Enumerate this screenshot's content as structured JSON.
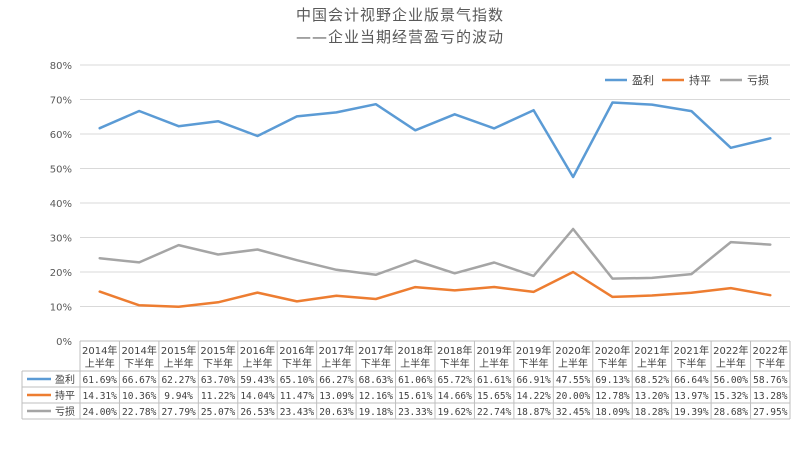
{
  "chart_data": {
    "type": "line",
    "title": [
      "中国会计视野企业版景气指数",
      "——企业当期经营盈亏的波动"
    ],
    "categories": [
      [
        "2014年",
        "上半年"
      ],
      [
        "2014年",
        "下半年"
      ],
      [
        "2015年",
        "上半年"
      ],
      [
        "2015年",
        "下半年"
      ],
      [
        "2016年",
        "上半年"
      ],
      [
        "2016年",
        "下半年"
      ],
      [
        "2017年",
        "上半年"
      ],
      [
        "2017年",
        "下半年"
      ],
      [
        "2018年",
        "上半年"
      ],
      [
        "2018年",
        "下半年"
      ],
      [
        "2019年",
        "上半年"
      ],
      [
        "2019年",
        "下半年"
      ],
      [
        "2020年",
        "上半年"
      ],
      [
        "2020年",
        "下半年"
      ],
      [
        "2021年",
        "上半年"
      ],
      [
        "2021年",
        "下半年"
      ],
      [
        "2022年",
        "上半年"
      ],
      [
        "2022年",
        "下半年"
      ]
    ],
    "yticks": [
      "0%",
      "10%",
      "20%",
      "30%",
      "40%",
      "50%",
      "60%",
      "70%",
      "80%"
    ],
    "ylim": [
      0,
      80
    ],
    "legend_position": "top-right",
    "grid": true,
    "series": [
      {
        "name": "盈利",
        "color": "#5B9BD5",
        "values": [
          61.69,
          66.67,
          62.27,
          63.7,
          59.43,
          65.1,
          66.27,
          68.63,
          61.06,
          65.72,
          61.61,
          66.91,
          47.55,
          69.13,
          68.52,
          66.64,
          56.0,
          58.76
        ],
        "labels": [
          "61.69%",
          "66.67%",
          "62.27%",
          "63.70%",
          "59.43%",
          "65.10%",
          "66.27%",
          "68.63%",
          "61.06%",
          "65.72%",
          "61.61%",
          "66.91%",
          "47.55%",
          "69.13%",
          "68.52%",
          "66.64%",
          "56.00%",
          "58.76%"
        ]
      },
      {
        "name": "持平",
        "color": "#ED7D31",
        "values": [
          14.31,
          10.36,
          9.94,
          11.22,
          14.04,
          11.47,
          13.09,
          12.16,
          15.61,
          14.66,
          15.65,
          14.22,
          20.0,
          12.78,
          13.2,
          13.97,
          15.32,
          13.28
        ],
        "labels": [
          "14.31%",
          "10.36%",
          "9.94%",
          "11.22%",
          "14.04%",
          "11.47%",
          "13.09%",
          "12.16%",
          "15.61%",
          "14.66%",
          "15.65%",
          "14.22%",
          "20.00%",
          "12.78%",
          "13.20%",
          "13.97%",
          "15.32%",
          "13.28%"
        ]
      },
      {
        "name": "亏损",
        "color": "#A5A5A5",
        "values": [
          24.0,
          22.78,
          27.79,
          25.07,
          26.53,
          23.43,
          20.63,
          19.18,
          23.33,
          19.62,
          22.74,
          18.87,
          32.45,
          18.09,
          18.28,
          19.39,
          28.68,
          27.95
        ],
        "labels": [
          "24.00%",
          "22.78%",
          "27.79%",
          "25.07%",
          "26.53%",
          "23.43%",
          "20.63%",
          "19.18%",
          "23.33%",
          "19.62%",
          "22.74%",
          "18.87%",
          "32.45%",
          "18.09%",
          "18.28%",
          "19.39%",
          "28.68%",
          "27.95%"
        ]
      }
    ]
  }
}
